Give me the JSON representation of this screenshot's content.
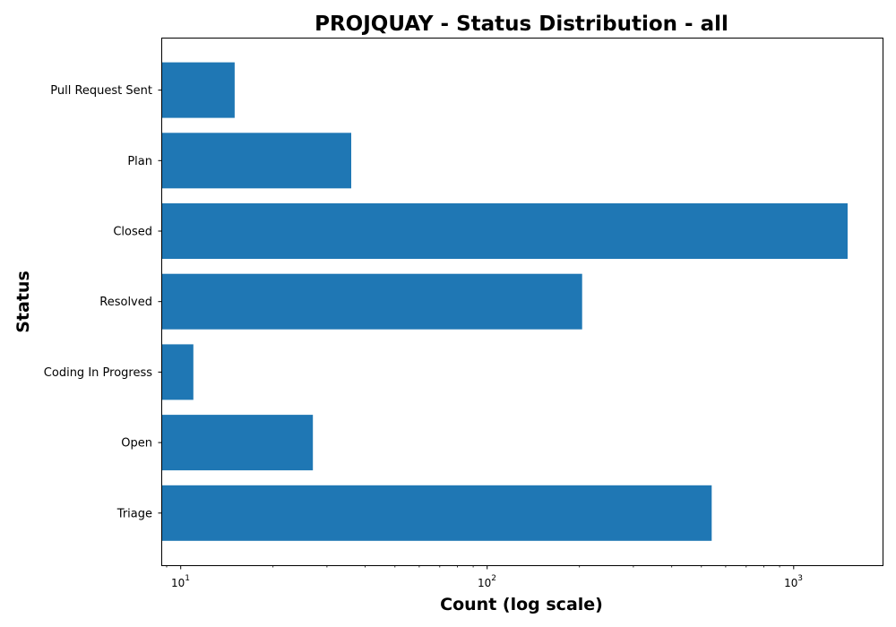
{
  "chart_data": {
    "type": "bar",
    "orientation": "horizontal",
    "title": "PROJQUAY - Status Distribution - all",
    "xlabel": "Count (log scale)",
    "ylabel": "Status",
    "x_scale": "log",
    "xlim": [
      8.7,
      1950
    ],
    "x_ticks": [
      {
        "base": "10",
        "exp": "1",
        "value": 10
      },
      {
        "base": "10",
        "exp": "2",
        "value": 100
      },
      {
        "base": "10",
        "exp": "3",
        "value": 1000
      }
    ],
    "categories": [
      "Pull Request Sent",
      "Plan",
      "Closed",
      "Resolved",
      "Coding In Progress",
      "Open",
      "Triage"
    ],
    "values": [
      15,
      36,
      1500,
      204,
      11,
      27,
      540
    ],
    "grid": false,
    "legend": "none",
    "bar_color": "#1f77b4"
  }
}
